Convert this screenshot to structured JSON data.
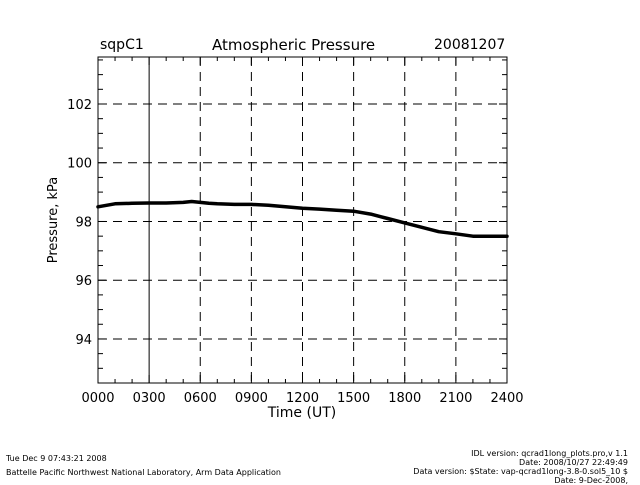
{
  "header": {
    "site": "sqpC1",
    "title": "Atmospheric Pressure",
    "date": "20081207"
  },
  "chart_data": {
    "type": "line",
    "title": "Atmospheric Pressure",
    "xlabel": "Time (UT)",
    "ylabel": "Pressure, kPa",
    "xlim": [
      0,
      24
    ],
    "ylim": [
      92.5,
      103.6
    ],
    "x_ticks": [
      0,
      3,
      6,
      9,
      12,
      15,
      18,
      21,
      24
    ],
    "x_tick_labels": [
      "0000",
      "0300",
      "0600",
      "0900",
      "1200",
      "1500",
      "1800",
      "2100",
      "2400"
    ],
    "y_ticks": [
      94,
      96,
      98,
      100,
      102
    ],
    "y_tick_labels": [
      "94",
      "96",
      "98",
      "100",
      "102"
    ],
    "grid": true,
    "series": [
      {
        "x": [
          0,
          0.5,
          1,
          2,
          3,
          4,
          5,
          5.5,
          6,
          6.5,
          7,
          8,
          9,
          10,
          11,
          12,
          13,
          14,
          15,
          16,
          17,
          18,
          19,
          20,
          21,
          22,
          23,
          24
        ],
        "y": [
          98.5,
          98.55,
          98.6,
          98.62,
          98.63,
          98.63,
          98.65,
          98.68,
          98.65,
          98.62,
          98.6,
          98.58,
          98.58,
          98.55,
          98.5,
          98.45,
          98.42,
          98.38,
          98.35,
          98.25,
          98.1,
          97.95,
          97.8,
          97.65,
          97.58,
          97.5,
          97.5,
          97.5
        ]
      }
    ]
  },
  "footer": {
    "timestamp": "Tue Dec  9 07:43:21 2008",
    "org": "Battelle Pacific Northwest National Laboratory, Arm Data Application",
    "idl_version": "IDL version: qcrad1long_plots.pro,v 1.1",
    "idl_date": "Date: 2008/10/27 22:49:49",
    "data_version": "Data version: $State: vap-qcrad1long-3.8-0.sol5_10 $",
    "data_date": "Date: 9-Dec-2008,"
  }
}
